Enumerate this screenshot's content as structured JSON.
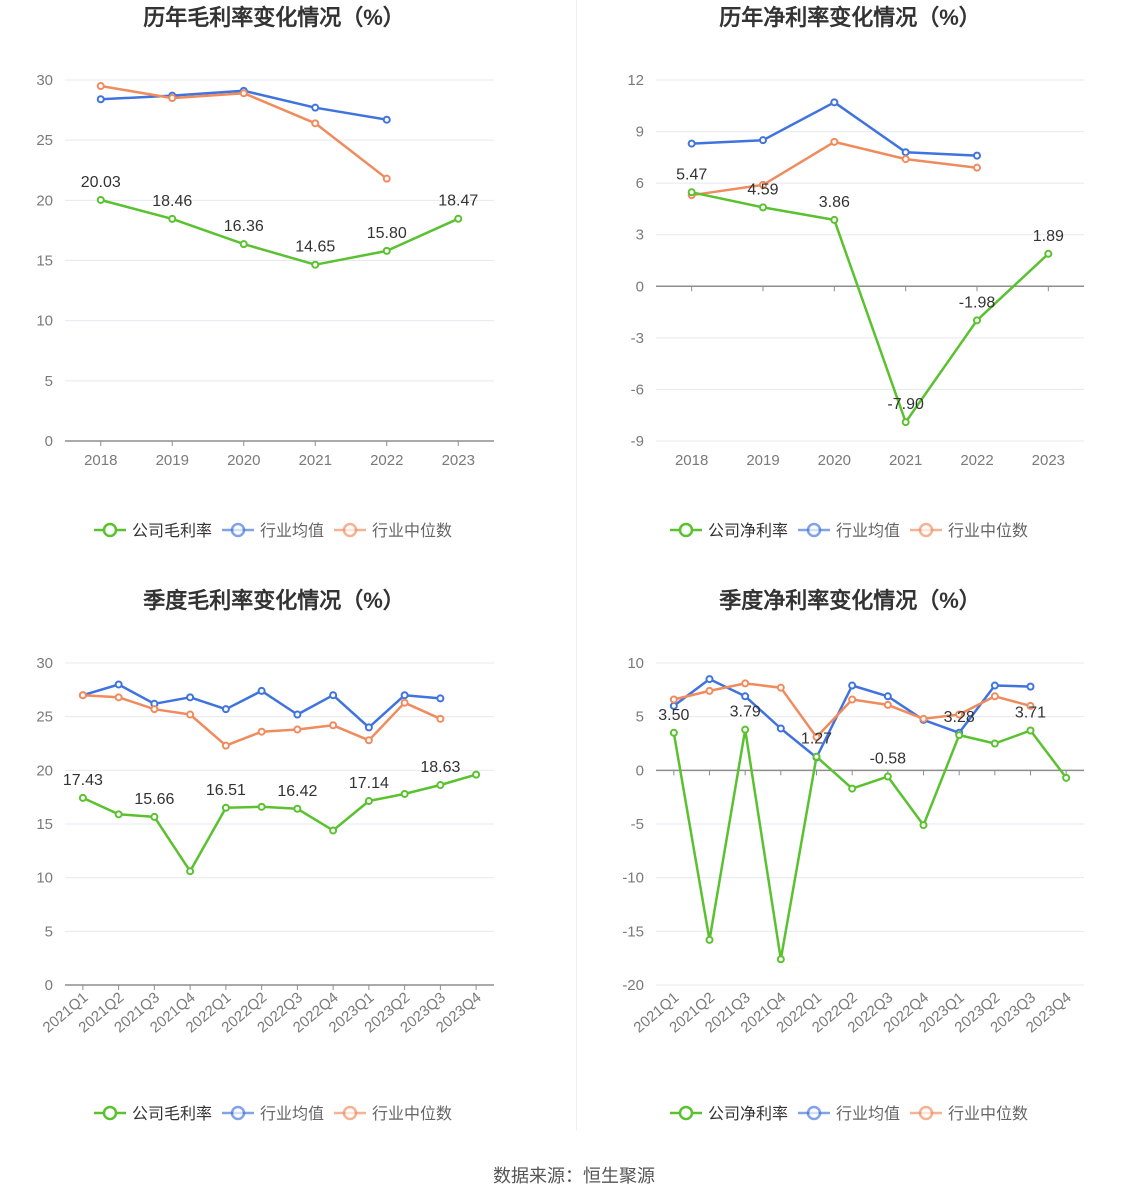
{
  "colors": {
    "company": "#5ac12f",
    "average": "#3f73de",
    "median": "#f08b5e",
    "grid": "#e6e8f0",
    "axis": "#8d8d8d",
    "label": "#333333",
    "tick": "#7a7a7a"
  },
  "source": "数据来源：恒生聚源",
  "chart_data": [
    {
      "type": "line",
      "title": "历年毛利率变化情况（%）",
      "categories": [
        "2018",
        "2019",
        "2020",
        "2021",
        "2022",
        "2023"
      ],
      "ylim": [
        0,
        30
      ],
      "yticks": [
        0,
        5,
        10,
        15,
        20,
        25,
        30
      ],
      "series": [
        {
          "name": "公司毛利率",
          "values": [
            20.03,
            18.46,
            16.36,
            14.65,
            15.8,
            18.47
          ],
          "labels": [
            "20.03",
            "18.46",
            "16.36",
            "14.65",
            "15.80",
            "18.47"
          ]
        },
        {
          "name": "行业均值",
          "values": [
            28.4,
            28.7,
            29.1,
            27.7,
            26.7,
            null
          ]
        },
        {
          "name": "行业中位数",
          "values": [
            29.5,
            28.5,
            28.9,
            26.4,
            21.8,
            null
          ]
        }
      ],
      "legend": [
        "公司毛利率",
        "行业均值",
        "行业中位数"
      ]
    },
    {
      "type": "line",
      "title": "历年净利率变化情况（%）",
      "categories": [
        "2018",
        "2019",
        "2020",
        "2021",
        "2022",
        "2023"
      ],
      "ylim": [
        -9,
        12
      ],
      "yticks": [
        -9,
        -6,
        -3,
        0,
        3,
        6,
        9,
        12
      ],
      "series": [
        {
          "name": "公司净利率",
          "values": [
            5.47,
            4.59,
            3.86,
            -7.9,
            -1.98,
            1.89
          ],
          "labels": [
            "5.47",
            "4.59",
            "3.86",
            "-7.90",
            "-1.98",
            "1.89"
          ]
        },
        {
          "name": "行业均值",
          "values": [
            8.3,
            8.5,
            10.7,
            7.8,
            7.6,
            null
          ]
        },
        {
          "name": "行业中位数",
          "values": [
            5.3,
            5.9,
            8.4,
            7.4,
            6.9,
            null
          ]
        }
      ],
      "legend": [
        "公司净利率",
        "行业均值",
        "行业中位数"
      ]
    },
    {
      "type": "line",
      "title": "季度毛利率变化情况（%）",
      "categories": [
        "2021Q1",
        "2021Q2",
        "2021Q3",
        "2021Q4",
        "2022Q1",
        "2022Q2",
        "2022Q3",
        "2022Q4",
        "2023Q1",
        "2023Q2",
        "2023Q3",
        "2023Q4"
      ],
      "ylim": [
        0,
        30
      ],
      "yticks": [
        0,
        5,
        10,
        15,
        20,
        25,
        30
      ],
      "series": [
        {
          "name": "公司毛利率",
          "values": [
            17.43,
            15.9,
            15.66,
            10.6,
            16.51,
            16.6,
            16.42,
            14.4,
            17.14,
            17.8,
            18.63,
            19.6
          ],
          "labels": [
            "17.43",
            "",
            "15.66",
            "",
            "16.51",
            "",
            "16.42",
            "",
            "17.14",
            "",
            "18.63",
            ""
          ]
        },
        {
          "name": "行业均值",
          "values": [
            27.0,
            28.0,
            26.2,
            26.8,
            25.7,
            27.4,
            25.2,
            27.0,
            24.0,
            27.0,
            26.7,
            null
          ]
        },
        {
          "name": "行业中位数",
          "values": [
            27.0,
            26.8,
            25.7,
            25.2,
            22.3,
            23.6,
            23.8,
            24.2,
            22.8,
            26.3,
            24.8,
            null
          ]
        }
      ],
      "legend": [
        "公司毛利率",
        "行业均值",
        "行业中位数"
      ]
    },
    {
      "type": "line",
      "title": "季度净利率变化情况（%）",
      "categories": [
        "2021Q1",
        "2021Q2",
        "2021Q3",
        "2021Q4",
        "2022Q1",
        "2022Q2",
        "2022Q3",
        "2022Q4",
        "2023Q1",
        "2023Q2",
        "2023Q3",
        "2023Q4"
      ],
      "ylim": [
        -20,
        10
      ],
      "yticks": [
        -20,
        -15,
        -10,
        -5,
        0,
        5,
        10
      ],
      "series": [
        {
          "name": "公司净利率",
          "values": [
            3.5,
            -15.8,
            3.79,
            -17.6,
            1.27,
            -1.7,
            -0.58,
            -5.1,
            3.28,
            2.5,
            3.71,
            -0.7
          ],
          "labels": [
            "3.50",
            "",
            "3.79",
            "",
            "1.27",
            "",
            "-0.58",
            "",
            "3.28",
            "",
            "3.71",
            ""
          ]
        },
        {
          "name": "行业均值",
          "values": [
            6.0,
            8.5,
            6.9,
            3.9,
            1.2,
            7.9,
            6.9,
            4.7,
            3.5,
            7.9,
            7.8,
            null
          ]
        },
        {
          "name": "行业中位数",
          "values": [
            6.6,
            7.4,
            8.1,
            7.7,
            3.1,
            6.6,
            6.1,
            4.8,
            5.2,
            6.9,
            6.0,
            null
          ]
        }
      ],
      "legend": [
        "公司净利率",
        "行业均值",
        "行业中位数"
      ]
    }
  ]
}
